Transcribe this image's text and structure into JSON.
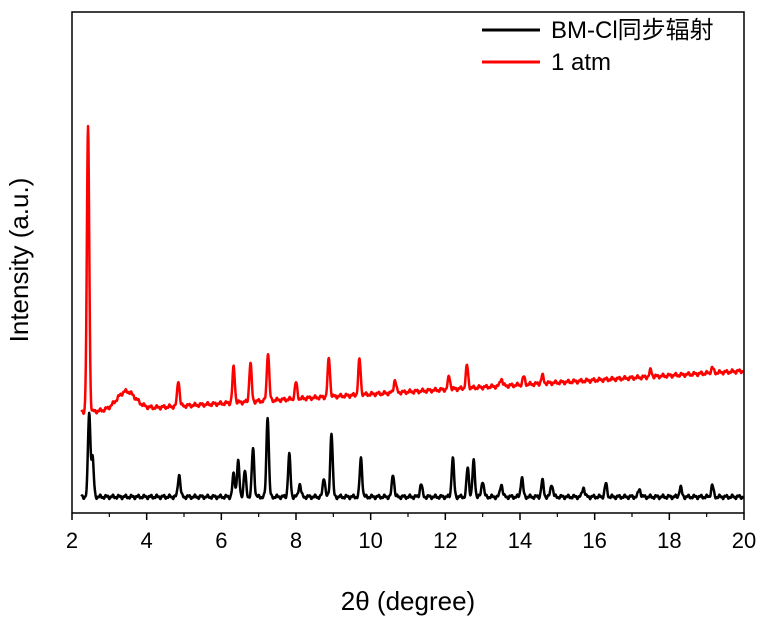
{
  "chart_data": {
    "type": "line",
    "xlabel": "2θ (degree)",
    "ylabel": "Intensity (a.u.)",
    "xlim": [
      2,
      20
    ],
    "xticks": [
      2,
      4,
      6,
      8,
      10,
      12,
      14,
      16,
      18,
      20
    ],
    "y_ticks_shown": false,
    "legend_position": "top-right",
    "series": [
      {
        "name": "BM-Cl同步辐射",
        "color": "#000000",
        "baseline": 0,
        "peaks": [
          [
            2.46,
            1.3
          ],
          [
            2.55,
            0.6
          ],
          [
            4.87,
            0.35
          ],
          [
            6.33,
            0.35
          ],
          [
            6.45,
            0.55
          ],
          [
            6.63,
            0.4
          ],
          [
            6.85,
            0.75
          ],
          [
            7.24,
            1.25
          ],
          [
            7.82,
            0.65
          ],
          [
            8.1,
            0.2
          ],
          [
            8.75,
            0.3
          ],
          [
            8.95,
            1.0
          ],
          [
            9.74,
            0.6
          ],
          [
            10.6,
            0.35
          ],
          [
            11.35,
            0.2
          ],
          [
            12.2,
            0.6
          ],
          [
            12.6,
            0.45
          ],
          [
            12.76,
            0.55
          ],
          [
            13.0,
            0.25
          ],
          [
            13.5,
            0.2
          ],
          [
            14.05,
            0.3
          ],
          [
            14.6,
            0.25
          ],
          [
            14.85,
            0.2
          ],
          [
            15.7,
            0.15
          ],
          [
            16.3,
            0.2
          ],
          [
            17.2,
            0.12
          ],
          [
            18.3,
            0.15
          ],
          [
            19.15,
            0.18
          ]
        ]
      },
      {
        "name": "1 atm",
        "color": "#ff0000",
        "baseline": 1.3,
        "slope": 0.036,
        "hump": [
          3.45,
          0.28
        ],
        "peaks": [
          [
            2.43,
            4.4
          ],
          [
            4.85,
            0.4
          ],
          [
            6.33,
            0.55
          ],
          [
            6.78,
            0.6
          ],
          [
            7.25,
            0.75
          ],
          [
            8.0,
            0.25
          ],
          [
            8.88,
            0.6
          ],
          [
            9.7,
            0.55
          ],
          [
            10.65,
            0.2
          ],
          [
            12.1,
            0.2
          ],
          [
            12.58,
            0.35
          ],
          [
            13.5,
            0.12
          ],
          [
            14.1,
            0.12
          ],
          [
            14.6,
            0.12
          ],
          [
            17.5,
            0.1
          ],
          [
            19.15,
            0.08
          ]
        ]
      }
    ]
  }
}
